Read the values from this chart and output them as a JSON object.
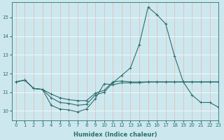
{
  "xlabel": "Humidex (Indice chaleur)",
  "ylabel": "",
  "xlim": [
    -0.5,
    23
  ],
  "ylim": [
    9.5,
    15.8
  ],
  "yticks": [
    10,
    11,
    12,
    13,
    14,
    15
  ],
  "xticks": [
    0,
    1,
    2,
    3,
    4,
    5,
    6,
    7,
    8,
    9,
    10,
    11,
    12,
    13,
    14,
    15,
    16,
    17,
    18,
    19,
    20,
    21,
    22,
    23
  ],
  "background_color": "#cce8ee",
  "grid_color_x": "#e8b0b0",
  "grid_color_y": "#ffffff",
  "line_color": "#2e6e6e",
  "series": [
    [
      11.55,
      11.65,
      11.2,
      11.15,
      10.3,
      10.1,
      10.05,
      9.95,
      10.1,
      10.65,
      11.45,
      11.4,
      11.5,
      11.5,
      11.5,
      11.55,
      11.55,
      11.55,
      11.55,
      11.55,
      11.55,
      11.55,
      11.55,
      11.55
    ],
    [
      11.55,
      11.65,
      11.2,
      11.15,
      10.7,
      10.45,
      10.4,
      10.3,
      10.35,
      10.85,
      11.0,
      11.5,
      11.9,
      12.3,
      13.55,
      15.55,
      15.15,
      14.65,
      12.95,
      11.55,
      10.85,
      10.45,
      10.45,
      10.2
    ],
    [
      11.55,
      11.65,
      11.2,
      11.15,
      10.9,
      10.7,
      10.6,
      10.55,
      10.55,
      10.95,
      11.1,
      11.55,
      11.6,
      11.55,
      11.55,
      11.55,
      11.55,
      11.55,
      11.55,
      11.55,
      11.55,
      11.55,
      11.55,
      11.55
    ]
  ],
  "figsize": [
    3.2,
    2.0
  ],
  "dpi": 100,
  "xlabel_fontsize": 6,
  "tick_fontsize": 5,
  "linewidth": 0.8,
  "markersize": 2.5
}
